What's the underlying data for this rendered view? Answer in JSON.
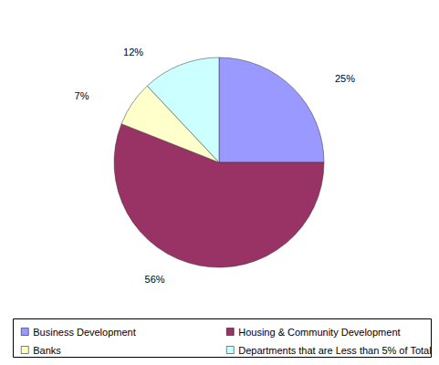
{
  "chart_data": {
    "type": "pie",
    "categories": [
      "Business Development",
      "Housing & Community Development",
      "Banks",
      "Departments that are Less than 5% of Total"
    ],
    "values": [
      25,
      56,
      7,
      12
    ],
    "value_labels": [
      "25%",
      "56%",
      "7%",
      "12%"
    ],
    "colors": [
      "#9999ff",
      "#993366",
      "#ffffcc",
      "#ccffff"
    ],
    "data_labels": true,
    "legend": "bottom"
  }
}
